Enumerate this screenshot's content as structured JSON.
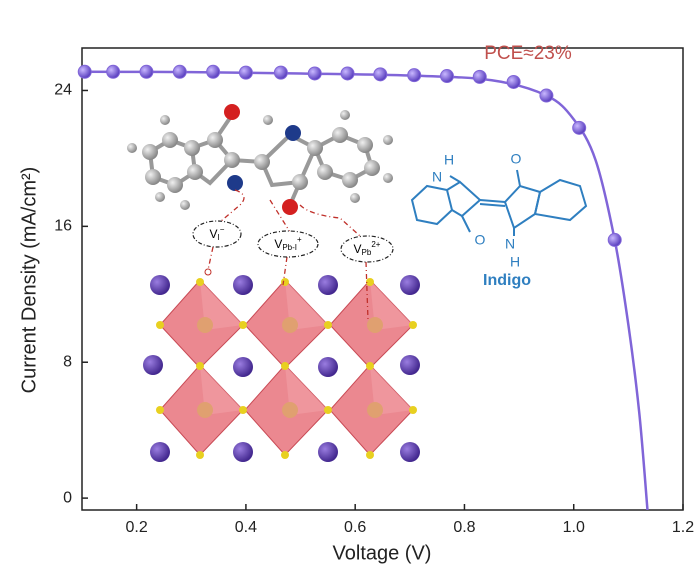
{
  "chart_data": {
    "type": "line",
    "x_label": "Voltage (V)",
    "y_label": "Current Density (mA/cm²)",
    "annotation": "PCE≈23%",
    "annotation_color": "#c0504d",
    "xlim": [
      0.1,
      1.2
    ],
    "ylim": [
      -0.7,
      26.5
    ],
    "xticks": [
      0.2,
      0.4,
      0.6,
      0.8,
      {
        "value": 1,
        "label": "1.0"
      },
      1.2
    ],
    "yticks": [
      0,
      8,
      16,
      24
    ],
    "series": [
      {
        "color": "#8065d8",
        "marker": true,
        "x": [
          0.105,
          0.157,
          0.218,
          0.279,
          0.34,
          0.4,
          0.464,
          0.526,
          0.586,
          0.646,
          0.708,
          0.768,
          0.828,
          0.89,
          0.95,
          1.01,
          1.075
        ],
        "values": [
          25.1,
          25.1,
          25.1,
          25.1,
          25.1,
          25.05,
          25.05,
          25.0,
          25.0,
          24.95,
          24.9,
          24.85,
          24.8,
          24.5,
          23.7,
          21.8,
          15.2
        ]
      },
      {
        "color": "#8065d8",
        "marker": false,
        "x": [
          0.1,
          0.3,
          0.5,
          0.7,
          0.85,
          0.95,
          1.0,
          1.04,
          1.075,
          1.1,
          1.12,
          1.135
        ],
        "values": [
          25.1,
          25.08,
          25.0,
          24.88,
          24.6,
          23.7,
          22.3,
          19.9,
          15.2,
          10.2,
          5.0,
          -0.7
        ]
      }
    ],
    "inset": {
      "molecule_name": "Indigo",
      "atoms": [
        "H",
        "O",
        "N",
        "O",
        "N",
        "H"
      ],
      "vacancies": [
        {
          "base": "V",
          "sub": "I",
          "sup": "−"
        },
        {
          "base": "V",
          "sub": "Pb-I",
          "sup": "+"
        },
        {
          "base": "V",
          "sub": "Pb",
          "sup": "2+"
        }
      ]
    }
  }
}
